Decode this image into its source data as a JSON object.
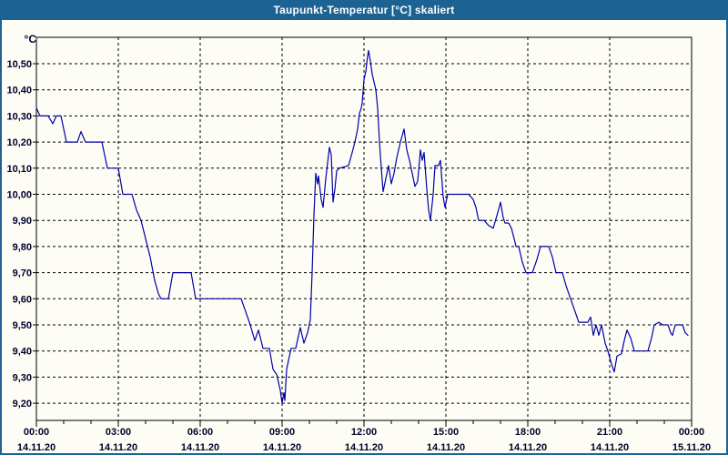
{
  "window": {
    "title": "Taupunkt-Temperatur [°C] skaliert"
  },
  "colors": {
    "frame": "#1c6394",
    "title_text": "#ffffff",
    "background": "#fdfdf6",
    "plot_background": "#fdfdf6",
    "line": "#0000a8",
    "grid": "#000000",
    "axis": "#000000",
    "axis_text": "#00002a"
  },
  "chart_data": {
    "type": "line",
    "title": "Taupunkt-Temperatur [°C] skaliert",
    "xlabel": "",
    "ylabel": "°C",
    "grid": true,
    "legend": "none",
    "ylim": [
      9.13,
      10.6
    ],
    "x_range_minutes": [
      0,
      1440
    ],
    "minor_x_tick_minutes": 60,
    "y_ticks": [
      {
        "value": 10.5,
        "label": "10,50"
      },
      {
        "value": 10.4,
        "label": "10,40"
      },
      {
        "value": 10.3,
        "label": "10,30"
      },
      {
        "value": 10.2,
        "label": "10,20"
      },
      {
        "value": 10.1,
        "label": "10,10"
      },
      {
        "value": 10.0,
        "label": "10,00"
      },
      {
        "value": 9.9,
        "label": "9,90"
      },
      {
        "value": 9.8,
        "label": "9,80"
      },
      {
        "value": 9.7,
        "label": "9,70"
      },
      {
        "value": 9.6,
        "label": "9,60"
      },
      {
        "value": 9.5,
        "label": "9,50"
      },
      {
        "value": 9.4,
        "label": "9,40"
      },
      {
        "value": 9.3,
        "label": "9,30"
      },
      {
        "value": 9.2,
        "label": "9,20"
      }
    ],
    "x_ticks": [
      {
        "minutes": 0,
        "time": "00:00",
        "date": "14.11.20"
      },
      {
        "minutes": 180,
        "time": "03:00",
        "date": "14.11.20"
      },
      {
        "minutes": 360,
        "time": "06:00",
        "date": "14.11.20"
      },
      {
        "minutes": 540,
        "time": "09:00",
        "date": "14.11.20"
      },
      {
        "minutes": 720,
        "time": "12:00",
        "date": "14.11.20"
      },
      {
        "minutes": 900,
        "time": "15:00",
        "date": "14.11.20"
      },
      {
        "minutes": 1080,
        "time": "18:00",
        "date": "14.11.20"
      },
      {
        "minutes": 1260,
        "time": "21:00",
        "date": "14.11.20"
      },
      {
        "minutes": 1440,
        "time": "00:00",
        "date": "15.11.20"
      }
    ],
    "series": [
      {
        "name": "Taupunkt-Temperatur",
        "color": "#0000a8",
        "points": [
          [
            "00:00",
            10.33
          ],
          [
            "00:08",
            10.3
          ],
          [
            "00:26",
            10.3
          ],
          [
            "00:36",
            10.27
          ],
          [
            "00:44",
            10.3
          ],
          [
            "00:54",
            10.3
          ],
          [
            "01:06",
            10.2
          ],
          [
            "01:30",
            10.2
          ],
          [
            "01:38",
            10.24
          ],
          [
            "01:48",
            10.2
          ],
          [
            "02:24",
            10.2
          ],
          [
            "02:36",
            10.1
          ],
          [
            "03:00",
            10.1
          ],
          [
            "03:10",
            10.0
          ],
          [
            "03:30",
            10.0
          ],
          [
            "03:40",
            9.94
          ],
          [
            "03:50",
            9.9
          ],
          [
            "04:00",
            9.83
          ],
          [
            "04:10",
            9.76
          ],
          [
            "04:20",
            9.67
          ],
          [
            "04:28",
            9.62
          ],
          [
            "04:34",
            9.6
          ],
          [
            "04:50",
            9.6
          ],
          [
            "05:00",
            9.7
          ],
          [
            "05:40",
            9.7
          ],
          [
            "05:50",
            9.6
          ],
          [
            "07:30",
            9.6
          ],
          [
            "07:40",
            9.55
          ],
          [
            "07:50",
            9.5
          ],
          [
            "08:00",
            9.44
          ],
          [
            "08:08",
            9.48
          ],
          [
            "08:18",
            9.41
          ],
          [
            "08:32",
            9.41
          ],
          [
            "08:40",
            9.33
          ],
          [
            "08:48",
            9.31
          ],
          [
            "08:56",
            9.25
          ],
          [
            "09:00",
            9.2
          ],
          [
            "09:04",
            9.24
          ],
          [
            "09:06",
            9.21
          ],
          [
            "09:10",
            9.33
          ],
          [
            "09:16",
            9.38
          ],
          [
            "09:20",
            9.41
          ],
          [
            "09:30",
            9.41
          ],
          [
            "09:40",
            9.49
          ],
          [
            "09:48",
            9.43
          ],
          [
            "09:56",
            9.47
          ],
          [
            "10:02",
            9.52
          ],
          [
            "10:06",
            9.7
          ],
          [
            "10:10",
            9.92
          ],
          [
            "10:14",
            10.08
          ],
          [
            "10:18",
            10.04
          ],
          [
            "10:20",
            10.07
          ],
          [
            "10:26",
            9.98
          ],
          [
            "10:30",
            9.95
          ],
          [
            "10:36",
            10.06
          ],
          [
            "10:44",
            10.18
          ],
          [
            "10:48",
            10.15
          ],
          [
            "10:52",
            9.97
          ],
          [
            "10:56",
            10.02
          ],
          [
            "11:00",
            10.09
          ],
          [
            "11:06",
            10.1
          ],
          [
            "11:26",
            10.11
          ],
          [
            "11:34",
            10.16
          ],
          [
            "11:40",
            10.2
          ],
          [
            "11:46",
            10.25
          ],
          [
            "11:50",
            10.31
          ],
          [
            "11:54",
            10.33
          ],
          [
            "11:56",
            10.35
          ],
          [
            "12:00",
            10.44
          ],
          [
            "12:04",
            10.47
          ],
          [
            "12:08",
            10.53
          ],
          [
            "12:10",
            10.55
          ],
          [
            "12:14",
            10.51
          ],
          [
            "12:18",
            10.46
          ],
          [
            "12:22",
            10.43
          ],
          [
            "12:26",
            10.4
          ],
          [
            "12:30",
            10.33
          ],
          [
            "12:34",
            10.2
          ],
          [
            "12:38",
            10.1
          ],
          [
            "12:42",
            10.01
          ],
          [
            "12:48",
            10.06
          ],
          [
            "12:54",
            10.11
          ],
          [
            "13:00",
            10.04
          ],
          [
            "13:06",
            10.08
          ],
          [
            "13:12",
            10.14
          ],
          [
            "13:20",
            10.2
          ],
          [
            "13:28",
            10.25
          ],
          [
            "13:34",
            10.17
          ],
          [
            "13:40",
            10.13
          ],
          [
            "13:46",
            10.08
          ],
          [
            "13:52",
            10.03
          ],
          [
            "13:58",
            10.05
          ],
          [
            "14:04",
            10.17
          ],
          [
            "14:08",
            10.13
          ],
          [
            "14:12",
            10.16
          ],
          [
            "14:18",
            10.02
          ],
          [
            "14:22",
            9.94
          ],
          [
            "14:26",
            9.9
          ],
          [
            "14:32",
            10.0
          ],
          [
            "14:36",
            10.11
          ],
          [
            "14:44",
            10.11
          ],
          [
            "14:48",
            10.13
          ],
          [
            "14:54",
            9.99
          ],
          [
            "14:58",
            9.95
          ],
          [
            "15:04",
            10.0
          ],
          [
            "15:50",
            10.0
          ],
          [
            "16:00",
            9.98
          ],
          [
            "16:06",
            9.95
          ],
          [
            "16:12",
            9.9
          ],
          [
            "16:24",
            9.9
          ],
          [
            "16:34",
            9.88
          ],
          [
            "16:44",
            9.87
          ],
          [
            "16:54",
            9.93
          ],
          [
            "17:00",
            9.97
          ],
          [
            "17:06",
            9.91
          ],
          [
            "17:10",
            9.89
          ],
          [
            "17:18",
            9.89
          ],
          [
            "17:24",
            9.87
          ],
          [
            "17:30",
            9.83
          ],
          [
            "17:34",
            9.8
          ],
          [
            "17:40",
            9.8
          ],
          [
            "17:48",
            9.74
          ],
          [
            "17:56",
            9.7
          ],
          [
            "18:10",
            9.7
          ],
          [
            "18:20",
            9.75
          ],
          [
            "18:28",
            9.8
          ],
          [
            "18:46",
            9.8
          ],
          [
            "18:54",
            9.76
          ],
          [
            "19:02",
            9.7
          ],
          [
            "19:16",
            9.7
          ],
          [
            "19:24",
            9.65
          ],
          [
            "19:34",
            9.6
          ],
          [
            "19:44",
            9.55
          ],
          [
            "19:52",
            9.51
          ],
          [
            "20:12",
            9.51
          ],
          [
            "20:18",
            9.53
          ],
          [
            "20:24",
            9.46
          ],
          [
            "20:30",
            9.5
          ],
          [
            "20:36",
            9.46
          ],
          [
            "20:42",
            9.5
          ],
          [
            "20:50",
            9.43
          ],
          [
            "20:56",
            9.4
          ],
          [
            "21:04",
            9.35
          ],
          [
            "21:10",
            9.32
          ],
          [
            "21:16",
            9.38
          ],
          [
            "21:26",
            9.39
          ],
          [
            "21:32",
            9.44
          ],
          [
            "21:38",
            9.48
          ],
          [
            "21:46",
            9.45
          ],
          [
            "21:54",
            9.4
          ],
          [
            "22:24",
            9.4
          ],
          [
            "22:32",
            9.45
          ],
          [
            "22:38",
            9.5
          ],
          [
            "22:48",
            9.51
          ],
          [
            "22:56",
            9.5
          ],
          [
            "23:08",
            9.5
          ],
          [
            "23:14",
            9.47
          ],
          [
            "23:18",
            9.46
          ],
          [
            "23:24",
            9.5
          ],
          [
            "23:40",
            9.5
          ],
          [
            "23:46",
            9.47
          ],
          [
            "23:52",
            9.46
          ]
        ]
      }
    ]
  }
}
